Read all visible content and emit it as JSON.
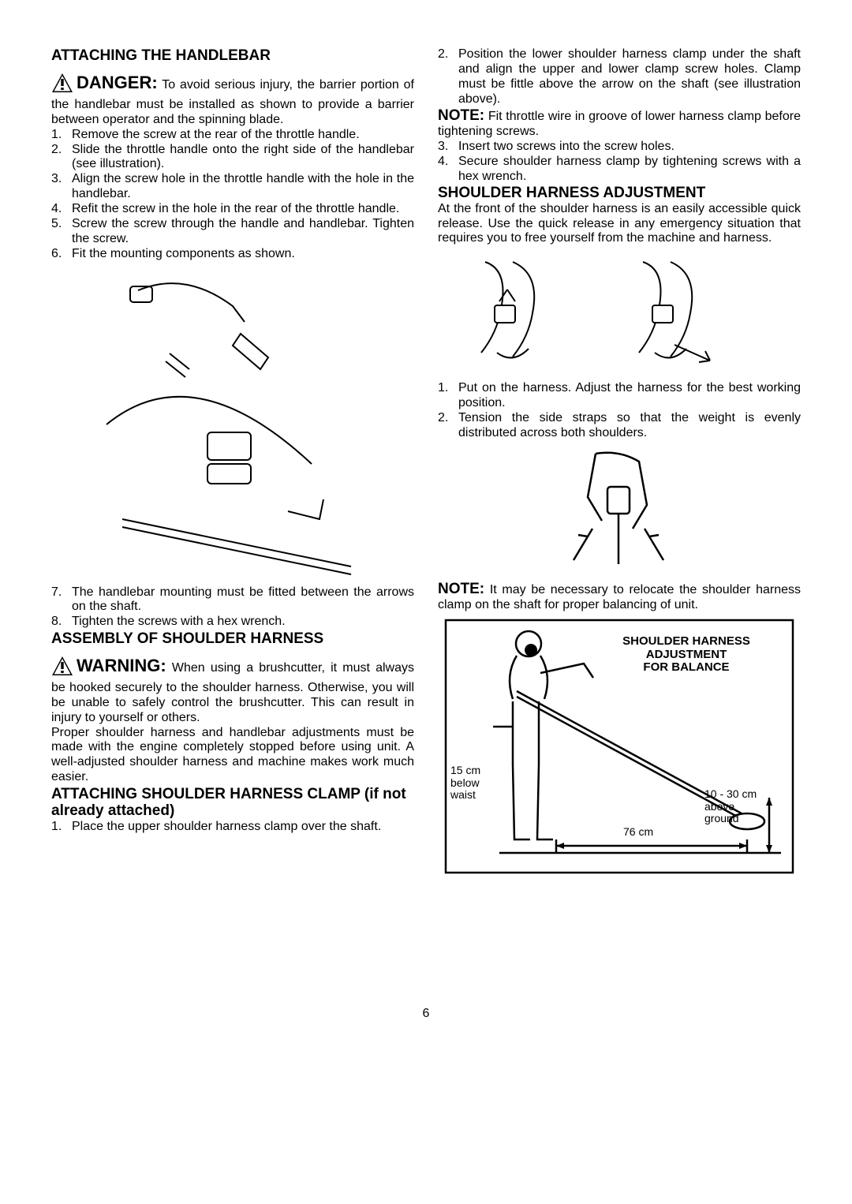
{
  "left": {
    "title": "ATTACHING THE HANDLEBAR",
    "danger_label": "DANGER:",
    "danger_text": "To avoid serious injury, the barrier portion of the handlebar must be installed as shown to provide a barrier between operator and the spinning blade.",
    "steps_a": [
      "Remove the screw at the rear of the throttle handle.",
      "Slide the throttle handle onto the right side of the handlebar (see illustration).",
      "Align the screw hole in the throttle handle with the hole in the handlebar.",
      "Refit the screw in the hole in the rear of the throttle handle.",
      "Screw the screw through the handle and handlebar. Tighten the screw.",
      "Fit the mounting components as shown."
    ],
    "steps_b": [
      "The handlebar mounting must be fitted between the arrows on the shaft.",
      "Tighten the screws with a hex wrench."
    ],
    "steps_b_start": 7,
    "assembly_title": "ASSEMBLY OF SHOULDER HARNESS",
    "warning_label": "WARNING:",
    "warning_text": "When using a brushcutter, it must always be hooked securely to the shoulder harness. Otherwise, you will be unable to safely control the brushcutter. This can result in injury to yourself or others.",
    "warning_para2": "Proper shoulder harness and handlebar adjustments must be made with the engine completely stopped before using unit. A well-adjusted shoulder harness and machine makes work much easier.",
    "attach_title": "ATTACHING SHOULDER HARNESS CLAMP (if not already attached)",
    "attach_step1": "Place the upper shoulder harness clamp over the shaft."
  },
  "right": {
    "step2": "Position the lower shoulder harness clamp under the shaft and align the upper and lower clamp screw holes. Clamp must be fittle above the arrow on the shaft (see illustration above).",
    "note1_label": "NOTE:",
    "note1_text": "Fit throttle wire in groove of lower harness clamp before tightening screws.",
    "step3": "Insert two screws into the screw holes.",
    "step4": "Secure shoulder harness clamp by tightening screws with a hex wrench.",
    "adjust_title": "SHOULDER HARNESS ADJUSTMENT",
    "adjust_para": "At the front of the shoulder harness is an easily accessible quick release. Use the quick release in any emergency situation that requires you to free yourself from the machine and harness.",
    "adjust_steps": [
      "Put on the harness. Adjust the harness for the best working position.",
      "Tension the side straps so that the weight is evenly distributed across both shoulders."
    ],
    "note2_label": "NOTE:",
    "note2_text": "It may be necessary to relocate the shoulder harness clamp on the shaft for proper balancing of unit.",
    "diagram": {
      "title_l1": "SHOULDER HARNESS",
      "title_l2": "ADJUSTMENT",
      "title_l3": "FOR BALANCE",
      "waist_l1": "15 cm",
      "waist_l2": "below",
      "waist_l3": "waist",
      "ground_dim": "76 cm",
      "right_l1": "10 - 30 cm",
      "right_l2": "above",
      "right_l3": "ground"
    }
  },
  "page_number": "6"
}
